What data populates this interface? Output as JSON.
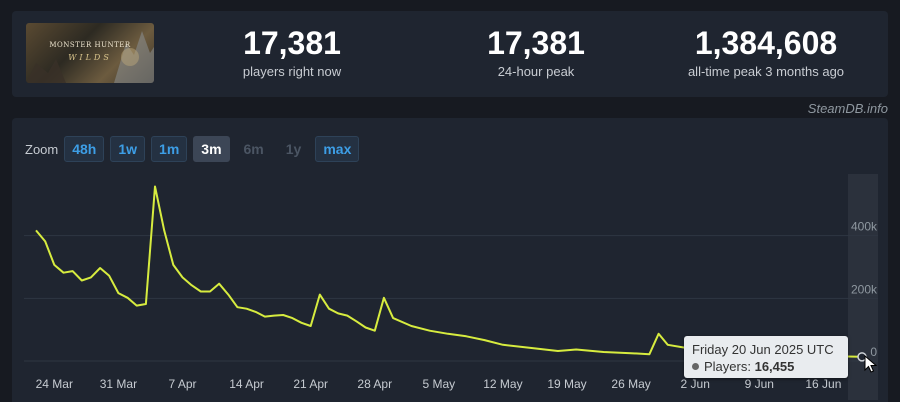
{
  "header": {
    "game_logo_line1": "MONSTER HUNTER",
    "game_logo_line2": "WILDS",
    "stats": [
      {
        "value": "17,381",
        "label": "players right now"
      },
      {
        "value": "17,381",
        "label": "24-hour peak"
      },
      {
        "value": "1,384,608",
        "label": "all-time peak 3 months ago"
      }
    ],
    "brand": "SteamDB.info"
  },
  "zoom": {
    "label": "Zoom",
    "buttons": [
      {
        "label": "48h",
        "state": "enabled"
      },
      {
        "label": "1w",
        "state": "enabled"
      },
      {
        "label": "1m",
        "state": "enabled"
      },
      {
        "label": "3m",
        "state": "active"
      },
      {
        "label": "6m",
        "state": "disabled"
      },
      {
        "label": "1y",
        "state": "disabled"
      },
      {
        "label": "max",
        "state": "enabled"
      }
    ]
  },
  "tooltip": {
    "title": "Friday 20 Jun 2025 UTC",
    "series_label": "Players:",
    "value": "16,455"
  },
  "colors": {
    "line": "#d7ec3f",
    "background": "#171a21",
    "panel": "#1f2530",
    "accent": "#3d9ee6"
  },
  "chart_data": {
    "type": "line",
    "series": [
      {
        "name": "Players",
        "x": [
          "2025-03-22",
          "2025-03-23",
          "2025-03-24",
          "2025-03-25",
          "2025-03-26",
          "2025-03-27",
          "2025-03-28",
          "2025-03-29",
          "2025-03-30",
          "2025-03-31",
          "2025-04-01",
          "2025-04-02",
          "2025-04-03",
          "2025-04-04",
          "2025-04-05",
          "2025-04-06",
          "2025-04-07",
          "2025-04-08",
          "2025-04-09",
          "2025-04-10",
          "2025-04-11",
          "2025-04-12",
          "2025-04-13",
          "2025-04-14",
          "2025-04-15",
          "2025-04-16",
          "2025-04-17",
          "2025-04-18",
          "2025-04-19",
          "2025-04-20",
          "2025-04-21",
          "2025-04-22",
          "2025-04-23",
          "2025-04-24",
          "2025-04-25",
          "2025-04-26",
          "2025-04-27",
          "2025-04-28",
          "2025-04-29",
          "2025-04-30",
          "2025-05-02",
          "2025-05-04",
          "2025-05-06",
          "2025-05-08",
          "2025-05-10",
          "2025-05-12",
          "2025-05-15",
          "2025-05-18",
          "2025-05-20",
          "2025-05-23",
          "2025-05-26",
          "2025-05-28",
          "2025-05-29",
          "2025-05-30",
          "2025-06-01",
          "2025-06-03",
          "2025-06-06",
          "2025-06-09",
          "2025-06-12",
          "2025-06-15",
          "2025-06-18",
          "2025-06-20"
        ],
        "values": [
          420000,
          385000,
          310000,
          285000,
          290000,
          260000,
          270000,
          300000,
          275000,
          220000,
          205000,
          180000,
          185000,
          560000,
          420000,
          310000,
          270000,
          245000,
          225000,
          225000,
          250000,
          215000,
          175000,
          170000,
          160000,
          145000,
          148000,
          150000,
          140000,
          125000,
          115000,
          215000,
          170000,
          155000,
          148000,
          130000,
          110000,
          100000,
          205000,
          140000,
          115000,
          100000,
          90000,
          82000,
          70000,
          55000,
          45000,
          35000,
          40000,
          32000,
          28000,
          25000,
          90000,
          55000,
          45000,
          38000,
          30000,
          26000,
          22000,
          20000,
          18000,
          16455
        ]
      }
    ],
    "x_tick_labels": [
      "24 Mar",
      "31 Mar",
      "7 Apr",
      "14 Apr",
      "21 Apr",
      "28 Apr",
      "5 May",
      "12 May",
      "19 May",
      "26 May",
      "2 Jun",
      "9 Jun",
      "16 Jun"
    ],
    "y_tick_labels": [
      "0",
      "200k",
      "400k"
    ],
    "ylim": [
      0,
      600000
    ],
    "grid": true,
    "highlighted_point": {
      "x": "2025-06-20",
      "y": 16455
    }
  }
}
